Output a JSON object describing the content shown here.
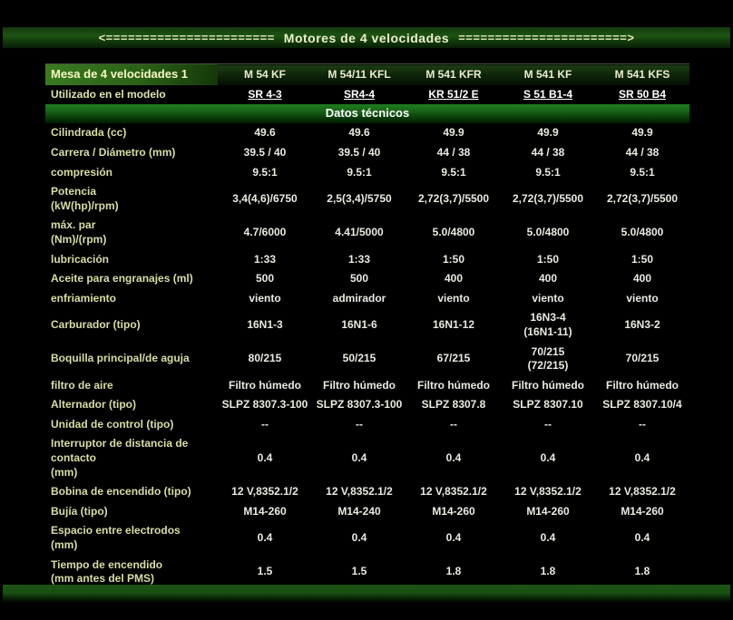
{
  "banner": {
    "arrow_left": "<=======================",
    "title": "Motores de 4 velocidades",
    "arrow_right": "=======================>"
  },
  "table": {
    "corner_label": "Mesa de 4 velocidades 1",
    "engine_columns": [
      "M 54 KF",
      "M 54/11 KFL",
      "M 541 KFR",
      "M 541 KF",
      "M 541 KFS"
    ],
    "model_row": {
      "label": "Utilizado en el modelo",
      "models": [
        "SR 4-3",
        "SR4-4",
        "KR 51/2 E",
        "S 51 B1-4",
        "SR 50 B4"
      ]
    },
    "section_header": "Datos técnicos",
    "rows": [
      {
        "label": "Cilindrada (cc)",
        "values": [
          "49.6",
          "49.6",
          "49.9",
          "49.9",
          "49.9"
        ]
      },
      {
        "label": "Carrera / Diámetro (mm)",
        "values": [
          "39.5 / 40",
          "39.5 / 40",
          "44 / 38",
          "44 / 38",
          "44 / 38"
        ]
      },
      {
        "label": "compresión",
        "values": [
          "9.5:1",
          "9.5:1",
          "9.5:1",
          "9.5:1",
          "9.5:1"
        ]
      },
      {
        "label": "Potencia\n(kW(hp)/rpm)",
        "values": [
          "3,4(4,6)/6750",
          "2,5(3,4)/5750",
          "2,72(3,7)/5500",
          "2,72(3,7)/5500",
          "2,72(3,7)/5500"
        ]
      },
      {
        "label": "máx. par\n(Nm)/(rpm)",
        "values": [
          "4.7/6000",
          "4.41/5000",
          "5.0/4800",
          "5.0/4800",
          "5.0/4800"
        ]
      },
      {
        "label": "lubricación",
        "values": [
          "1:33",
          "1:33",
          "1:50",
          "1:50",
          "1:50"
        ]
      },
      {
        "label": "Aceite para engranajes (ml)",
        "values": [
          "500",
          "500",
          "400",
          "400",
          "400"
        ]
      },
      {
        "label": "enfriamiento",
        "values": [
          "viento",
          "admirador",
          "viento",
          "viento",
          "viento"
        ]
      },
      {
        "label": "Carburador (tipo)",
        "values": [
          "16N1-3",
          "16N1-6",
          "16N1-12",
          "16N3-4\n(16N1-11)",
          "16N3-2"
        ]
      },
      {
        "label": "Boquilla principal/de aguja",
        "values": [
          "80/215",
          "50/215",
          "67/215",
          "70/215\n(72/215)",
          "70/215"
        ]
      },
      {
        "label": "filtro de aire",
        "values": [
          "Filtro húmedo",
          "Filtro húmedo",
          "Filtro húmedo",
          "Filtro húmedo",
          "Filtro húmedo"
        ]
      },
      {
        "label": "Alternador (tipo)",
        "values": [
          "SLPZ 8307.3-100",
          "SLPZ 8307.3-100",
          "SLPZ 8307.8",
          "SLPZ 8307.10",
          "SLPZ 8307.10/4"
        ]
      },
      {
        "label": "Unidad de control (tipo)",
        "values": [
          "--",
          "--",
          "--",
          "--",
          "--"
        ]
      },
      {
        "label": "Interruptor de distancia de\ncontacto\n(mm)",
        "values": [
          "0.4",
          "0.4",
          "0.4",
          "0.4",
          "0.4"
        ]
      },
      {
        "label": "Bobina de encendido (tipo)",
        "values": [
          "12 V,8352.1/2",
          "12 V,8352.1/2",
          "12 V,8352.1/2",
          "12 V,8352.1/2",
          "12 V,8352.1/2"
        ]
      },
      {
        "label": "Bujía (tipo)",
        "values": [
          "M14-260",
          "M14-240",
          "M14-260",
          "M14-260",
          "M14-260"
        ]
      },
      {
        "label": "Espacio entre electrodos\n(mm)",
        "values": [
          "0.4",
          "0.4",
          "0.4",
          "0.4",
          "0.4"
        ]
      },
      {
        "label": "Tiempo de encendido\n(mm antes del PMS)",
        "values": [
          "1.5",
          "1.5",
          "1.8",
          "1.8",
          "1.8"
        ]
      }
    ]
  },
  "colors": {
    "background": "#000000",
    "banner_green": "#1d5413",
    "section_green": "#1f7c1f",
    "corner_green": "#3a7a20",
    "label_text": "#d8dda4",
    "value_text": "#e7ebe0",
    "link_text": "#ffffff"
  }
}
